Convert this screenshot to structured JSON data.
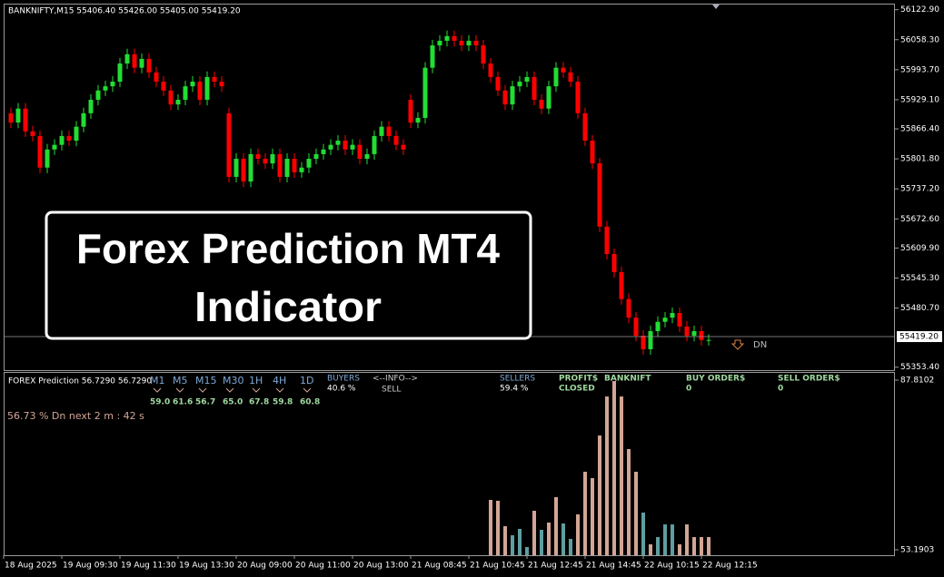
{
  "header": "BANKNIFTY,M15  55406.40 55426.00 55405.00 55419.20",
  "banner": [
    "Forex Prediction MT4",
    "Indicator"
  ],
  "signal": "DN",
  "indicator_panel": {
    "title": "FOREX Prediction 56.7290 56.7290",
    "timeframes": [
      {
        "name": "M1",
        "value": "59.0"
      },
      {
        "name": "M5",
        "value": "61.6"
      },
      {
        "name": "M15",
        "value": "56.7"
      },
      {
        "name": "M30",
        "value": "65.0"
      },
      {
        "name": "1H",
        "value": "67.8"
      },
      {
        "name": "4H",
        "value": "59.8"
      },
      {
        "name": "1D",
        "value": "60.8"
      }
    ],
    "buyers": {
      "label": "BUYERS",
      "value": "40.6 %"
    },
    "info": {
      "label": "<--INFO-->",
      "value": "SELL"
    },
    "sellers": {
      "label": "SELLERS",
      "value": "59.4 %"
    },
    "profit": {
      "label": "PROFIT$",
      "value": "CLOSED"
    },
    "symbol": "BANKNIFT",
    "buy_orders": {
      "label": "BUY ORDER$",
      "value": "0"
    },
    "sell_orders": {
      "label": "SELL ORDER$",
      "value": "0"
    },
    "countdown": "56.73 % Dn next 2 m : 42 s"
  },
  "chart_data": [
    {
      "type": "candlestick",
      "up_color": "#22dd33",
      "down_color": "#ff0000",
      "ylim": [
        55347,
        56134
      ],
      "yticks": [
        {
          "value": 56122.9,
          "label": "56122.90"
        },
        {
          "value": 56058.3,
          "label": "56058.30"
        },
        {
          "value": 55993.7,
          "label": "55993.70"
        },
        {
          "value": 55929.1,
          "label": "55929.10"
        },
        {
          "value": 55866.4,
          "label": "55866.40"
        },
        {
          "value": 55801.8,
          "label": "55801.80"
        },
        {
          "value": 55737.2,
          "label": "55737.20"
        },
        {
          "value": 55672.6,
          "label": "55672.60"
        },
        {
          "value": 55609.9,
          "label": "55609.90"
        },
        {
          "value": 55545.3,
          "label": "55545.30"
        },
        {
          "value": 55480.7,
          "label": "55480.70"
        },
        {
          "value": 55353.4,
          "label": "55353.40"
        }
      ],
      "last_price": {
        "value": 55419.2,
        "label": "55419.20"
      },
      "time_labels": [
        "18 Aug 2025",
        "19 Aug 09:30",
        "19 Aug 11:30",
        "19 Aug 13:30",
        "20 Aug 09:00",
        "20 Aug 11:00",
        "20 Aug 13:00",
        "21 Aug 08:45",
        "21 Aug 10:45",
        "21 Aug 12:45",
        "21 Aug 14:45",
        "22 Aug 10:15",
        "22 Aug 12:15"
      ],
      "open": [
        55900,
        55880,
        55910,
        55861,
        55851,
        55783,
        55822,
        55832,
        55851,
        55841,
        55871,
        55900,
        55929,
        55949,
        55958,
        55968,
        56007,
        56027,
        55998,
        56017,
        55988,
        55968,
        55949,
        55919,
        55929,
        55958,
        55968,
        55929,
        55978,
        55968,
        55900,
        55763,
        55802,
        55753,
        55812,
        55802,
        55792,
        55812,
        55763,
        55802,
        55773,
        55783,
        55802,
        55812,
        55822,
        55832,
        55841,
        55822,
        55832,
        55802,
        55812,
        55851,
        55871,
        55851,
        55832,
        55929,
        55880,
        55890,
        55998,
        56046,
        56056,
        56066,
        56056,
        56046,
        56056,
        56046,
        56007,
        55978,
        55949,
        55919,
        55958,
        55968,
        55978,
        55929,
        55910,
        55958,
        55998,
        55988,
        55968,
        55900,
        55841,
        55792,
        55656,
        55597,
        55558,
        55500,
        55460,
        55421,
        55392,
        55431,
        55451,
        55460,
        55470,
        55441,
        55421,
        55431,
        55412
      ],
      "high": [
        55912,
        55922,
        55922,
        55873,
        55863,
        55834,
        55844,
        55863,
        55863,
        55883,
        55912,
        55941,
        55961,
        55970,
        55980,
        56019,
        56039,
        56039,
        56029,
        56029,
        56000,
        55980,
        55961,
        55941,
        55970,
        55980,
        55980,
        55990,
        55990,
        55980,
        55912,
        55814,
        55814,
        55824,
        55824,
        55814,
        55824,
        55824,
        55814,
        55814,
        55795,
        55814,
        55824,
        55834,
        55844,
        55853,
        55853,
        55844,
        55844,
        55824,
        55863,
        55883,
        55883,
        55863,
        55844,
        55941,
        55902,
        56010,
        56058,
        56068,
        56078,
        56078,
        56068,
        56068,
        56068,
        56058,
        56019,
        55990,
        55961,
        55970,
        55980,
        55990,
        55990,
        55941,
        55970,
        56010,
        56010,
        56000,
        55980,
        55912,
        55853,
        55804,
        55668,
        55609,
        55570,
        55512,
        55472,
        55433,
        55443,
        55463,
        55472,
        55482,
        55482,
        55453,
        55443,
        55443,
        55424
      ],
      "low": [
        55868,
        55868,
        55849,
        55839,
        55771,
        55771,
        55810,
        55820,
        55829,
        55829,
        55859,
        55888,
        55917,
        55937,
        55946,
        55956,
        55995,
        55986,
        55986,
        55976,
        55956,
        55937,
        55907,
        55907,
        55917,
        55946,
        55917,
        55917,
        55956,
        55946,
        55751,
        55751,
        55741,
        55741,
        55790,
        55780,
        55780,
        55751,
        55751,
        55761,
        55761,
        55771,
        55790,
        55800,
        55810,
        55820,
        55810,
        55810,
        55790,
        55790,
        55800,
        55839,
        55839,
        55820,
        55810,
        55868,
        55868,
        55878,
        55986,
        56034,
        56044,
        56044,
        56034,
        56034,
        56034,
        55995,
        55966,
        55937,
        55907,
        55907,
        55946,
        55956,
        55917,
        55898,
        55898,
        55946,
        55976,
        55956,
        55888,
        55829,
        55780,
        55644,
        55585,
        55546,
        55488,
        55448,
        55409,
        55380,
        55380,
        55419,
        55439,
        55448,
        55429,
        55409,
        55409,
        55400,
        55400
      ],
      "close": [
        55880,
        55910,
        55861,
        55851,
        55783,
        55822,
        55832,
        55851,
        55841,
        55871,
        55900,
        55929,
        55949,
        55958,
        55968,
        56007,
        56027,
        55998,
        56017,
        55988,
        55968,
        55949,
        55919,
        55929,
        55958,
        55968,
        55929,
        55978,
        55968,
        55958,
        55763,
        55802,
        55753,
        55812,
        55802,
        55792,
        55812,
        55763,
        55802,
        55773,
        55783,
        55802,
        55812,
        55822,
        55832,
        55841,
        55822,
        55832,
        55802,
        55812,
        55851,
        55871,
        55851,
        55832,
        55822,
        55880,
        55890,
        55998,
        56046,
        56056,
        56066,
        56056,
        56046,
        56056,
        56046,
        56007,
        55978,
        55949,
        55919,
        55958,
        55968,
        55978,
        55929,
        55910,
        55958,
        55998,
        55988,
        55968,
        55900,
        55841,
        55792,
        55656,
        55597,
        55558,
        55500,
        55460,
        55421,
        55392,
        55431,
        55451,
        55460,
        55470,
        55441,
        55421,
        55431,
        55412,
        55412
      ]
    },
    {
      "type": "bar",
      "ylim": [
        52.08,
        89.29
      ],
      "yticks": [
        87.8102,
        53.1903
      ],
      "values": [
        63.37,
        63.19,
        58.0,
        56.15,
        57.45,
        53.75,
        61.15,
        57.26,
        58.74,
        63.93,
        58.56,
        55.41,
        60.41,
        69.11,
        67.81,
        76.51,
        84.47,
        87.62,
        84.47,
        73.74,
        69.11,
        60.78,
        54.3,
        55.78,
        58.37,
        58.37,
        54.3,
        58.37,
        55.78,
        55.78,
        55.78
      ],
      "bar_colors": [
        "#d2a595",
        "#d2a595",
        "#d2a595",
        "#5f9ea0",
        "#5f9ea0",
        "#5f9ea0",
        "#d2a595",
        "#5f9ea0",
        "#d2a595",
        "#d2a595",
        "#5f9ea0",
        "#5f9ea0",
        "#d2a595",
        "#d2a595",
        "#d2a595",
        "#d2a595",
        "#d2a595",
        "#d2a595",
        "#d2a595",
        "#d2a595",
        "#d2a595",
        "#5f9ea0",
        "#d2a595",
        "#5f9ea0",
        "#5f9ea0",
        "#5f9ea0",
        "#d2a595",
        "#d2a595",
        "#d2a595",
        "#d2a595",
        "#d2a595"
      ]
    }
  ]
}
